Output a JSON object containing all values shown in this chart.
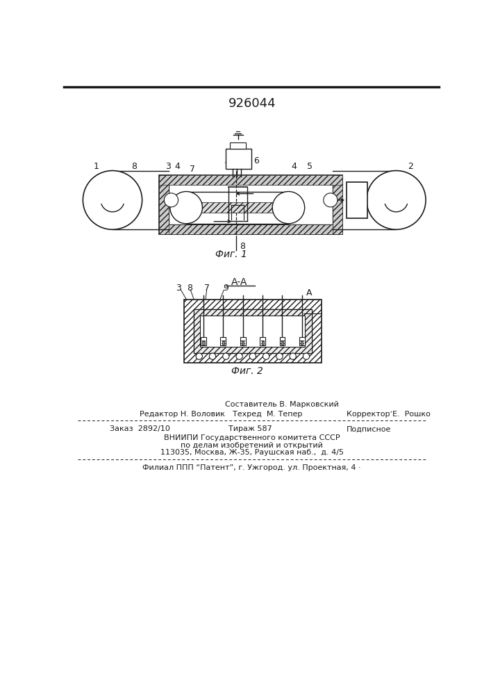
{
  "patent_number": "926044",
  "bg_color": "#ffffff",
  "line_color": "#1a1a1a",
  "fig1_caption": "Фиг. 1",
  "fig2_caption": "Фиг. 2",
  "fig2_section": "A-A",
  "footer_sestavitel": "Составитель В. Марковский",
  "footer_editor": "Редактор Н. Воловик",
  "footer_tekhred": "Техред  М. Тепер",
  "footer_correktor": "КорректорʼE.  Рошко",
  "footer_zakaz": "Заказ  2892/10",
  "footer_tirazh": "Тираж 587",
  "footer_podpisnoe": "Подписное",
  "footer_vniip1": "ВНИИПИ Государственного комитета СССР",
  "footer_vniip2": "по делам изобретений и открытий",
  "footer_addr": "113035, Москва, Ж-35, Раушская наб.,  д. 4/5",
  "footer_filial": "Филиал ППП “Патент”, г. Ужгород. ул. Проектная, 4 ·"
}
